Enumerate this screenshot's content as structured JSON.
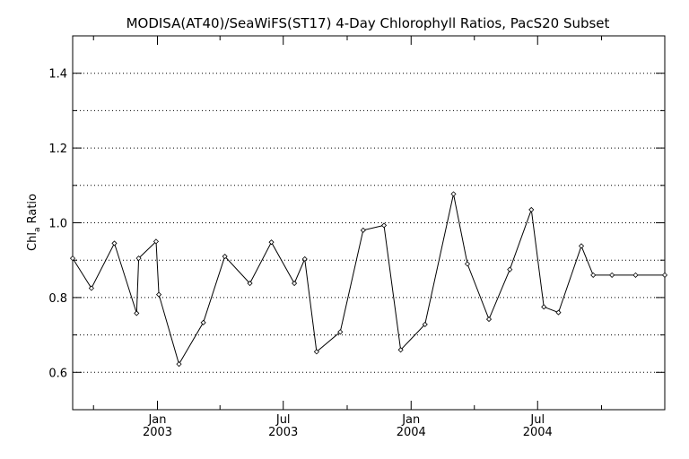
{
  "chart_data": {
    "type": "line",
    "title": "MODISA(AT40)/SeaWiFS(ST17) 4-Day Chlorophyll Ratios, PacS20 Subset",
    "ylabel": "Chl_a Ratio",
    "ylabel_main": "Chl",
    "ylabel_sub": "a",
    "ylabel_rest": " Ratio",
    "xlabel": "",
    "ylim": [
      0.5,
      1.5
    ],
    "y_ticks": [
      "0.6",
      "0.8",
      "1.0",
      "1.2",
      "1.4"
    ],
    "y_tick_values": [
      0.6,
      0.8,
      1.0,
      1.2,
      1.4
    ],
    "y_gridlines": [
      0.6,
      0.7,
      0.8,
      0.9,
      1.0,
      1.1,
      1.2,
      1.3,
      1.4
    ],
    "xlim": [
      "2002-09-01",
      "2004-12-31"
    ],
    "x_ticks": [
      {
        "date": "2003-01-01",
        "line1": "Jan",
        "line2": "2003"
      },
      {
        "date": "2003-07-01",
        "line1": "Jul",
        "line2": "2003"
      },
      {
        "date": "2004-01-01",
        "line1": "Jan",
        "line2": "2004"
      },
      {
        "date": "2004-07-01",
        "line1": "Jul",
        "line2": "2004"
      }
    ],
    "grid": "horizontal dotted",
    "marker": "diamond",
    "line_color": "#000000",
    "series": [
      {
        "x": [
          "2002-09-01",
          "2002-09-28",
          "2002-10-31",
          "2002-12-02",
          "2002-12-05",
          "2002-12-30",
          "2003-01-03",
          "2003-02-01",
          "2003-03-08",
          "2003-04-08",
          "2003-05-14",
          "2003-06-14",
          "2003-07-17",
          "2003-08-01",
          "2003-08-18",
          "2003-09-21",
          "2003-10-24",
          "2003-11-23",
          "2003-12-17",
          "2004-01-21",
          "2004-03-02",
          "2004-03-22",
          "2004-04-22",
          "2004-05-22",
          "2004-06-22",
          "2004-07-10",
          "2004-07-31",
          "2004-09-02",
          "2004-09-19",
          "2004-10-16",
          "2004-11-19",
          "2004-12-31"
        ],
        "y": [
          0.905,
          0.825,
          0.945,
          0.758,
          0.905,
          0.95,
          0.808,
          0.622,
          0.733,
          0.91,
          0.838,
          0.948,
          0.838,
          0.903,
          0.655,
          0.708,
          0.98,
          0.993,
          0.66,
          0.728,
          1.077,
          0.89,
          0.742,
          0.875,
          1.035,
          0.775,
          0.76,
          0.938,
          0.86,
          0.86,
          0.86,
          0.86
        ]
      }
    ]
  }
}
